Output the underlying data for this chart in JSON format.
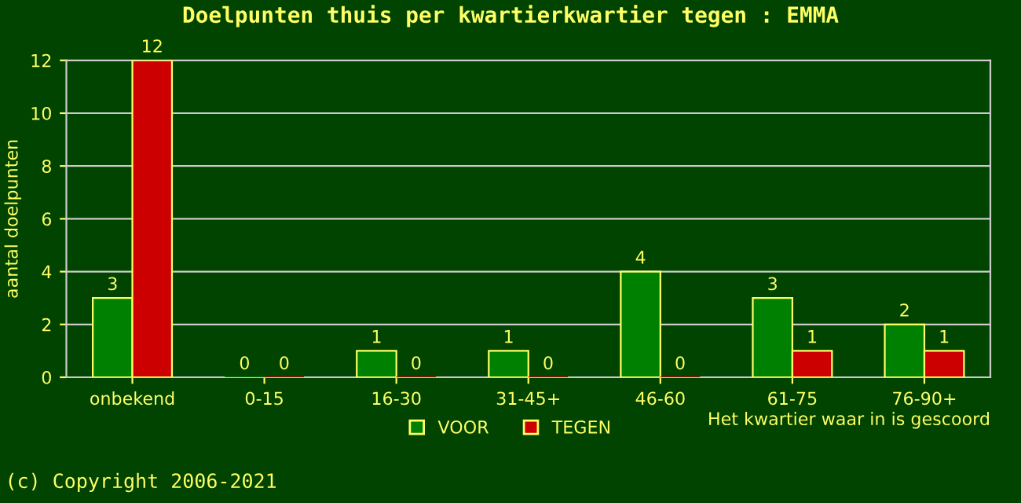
{
  "chart_data": {
    "type": "bar",
    "title": "Doelpunten thuis per kwartierkwartier tegen : EMMA",
    "categories": [
      "onbekend",
      "0-15",
      "16-30",
      "31-45+",
      "46-60",
      "61-75",
      "76-90+"
    ],
    "series": [
      {
        "name": "VOOR",
        "color": "#008000",
        "values": [
          3,
          0,
          1,
          1,
          4,
          3,
          2
        ]
      },
      {
        "name": "TEGEN",
        "color": "#cc0000",
        "values": [
          12,
          0,
          0,
          0,
          0,
          1,
          1
        ]
      }
    ],
    "ylabel": "aantal doelpunten",
    "xlabel": "Het kwartier waar in is gescoord",
    "ylim": [
      0,
      12
    ],
    "yticks": [
      0,
      2,
      4,
      6,
      8,
      10,
      12
    ],
    "grid": "y",
    "legend": "bottom",
    "data_labels": true,
    "annotations": [
      "(c) Copyright 2006-2021"
    ]
  }
}
